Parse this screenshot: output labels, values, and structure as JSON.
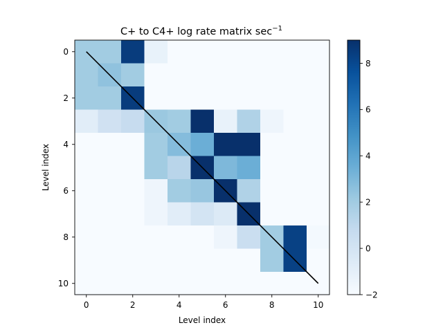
{
  "chart_data": {
    "type": "heatmap",
    "title_main": "C+ to C4+ log rate matrix sec",
    "title_exponent": "−1",
    "xlabel": "Level index",
    "ylabel": "Level index",
    "xticks": [
      "0",
      "2",
      "4",
      "6",
      "8",
      "10"
    ],
    "yticks": [
      "0",
      "2",
      "4",
      "6",
      "8",
      "10"
    ],
    "colorbar_ticks": [
      "−2",
      "0",
      "2",
      "4",
      "6",
      "8"
    ],
    "colorbar_tick_values": [
      -2,
      0,
      2,
      4,
      6,
      8
    ],
    "colorbar_range": [
      -2,
      9
    ],
    "colormap": "Blues",
    "grid": false,
    "diagonal_line": {
      "from": [
        0,
        0
      ],
      "to": [
        10,
        10
      ],
      "color": "#000000"
    },
    "rows": 11,
    "cols": 11,
    "matrix": [
      [
        2.0,
        2.0,
        8.5,
        -1.2,
        -2,
        -2,
        -2,
        -2,
        -2,
        -2,
        -2
      ],
      [
        2.0,
        2.5,
        2.0,
        -2,
        -2,
        -2,
        -2,
        -2,
        -2,
        -2,
        -2
      ],
      [
        2.0,
        2.0,
        8.5,
        -2,
        -2,
        -2,
        -2,
        -2,
        -2,
        -2,
        -2
      ],
      [
        -0.8,
        0.2,
        0.7,
        2.2,
        2.0,
        9.0,
        -1.2,
        1.5,
        -1.5,
        -2,
        -2
      ],
      [
        -2,
        -2,
        -2,
        2.0,
        2.8,
        3.5,
        9.0,
        9.0,
        -2,
        -2,
        -2
      ],
      [
        -2,
        -2,
        -2,
        2.0,
        1.2,
        9.0,
        3.0,
        3.5,
        -2,
        -2,
        -2
      ],
      [
        -2,
        -2,
        -2,
        -1.5,
        2.0,
        2.3,
        9.0,
        1.5,
        -2,
        -2,
        -2
      ],
      [
        -2,
        -2,
        -2,
        -1.5,
        -0.8,
        0.0,
        -0.5,
        9.0,
        -2,
        -2,
        -2
      ],
      [
        -2,
        -2,
        -2,
        -2,
        -2,
        -2,
        -1.5,
        0.5,
        2.0,
        8.3,
        -1.8
      ],
      [
        -2,
        -2,
        -2,
        -2,
        -2,
        -2,
        -2,
        -2,
        2.0,
        8.3,
        -2
      ],
      [
        -2,
        -2,
        -2,
        -2,
        -2,
        -2,
        -2,
        -2,
        -2,
        -2,
        -2
      ]
    ]
  }
}
